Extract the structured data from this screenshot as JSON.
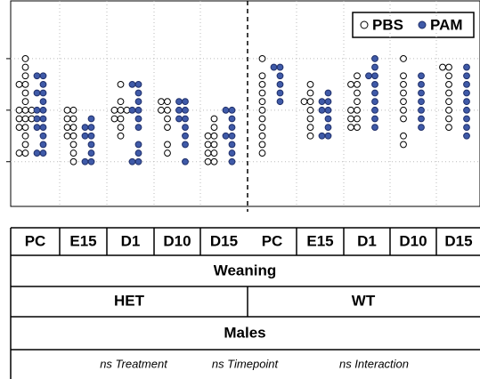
{
  "chart_data": {
    "type": "dot",
    "categories": [
      "PC",
      "E15",
      "D1",
      "D10",
      "D15",
      "PC",
      "E15",
      "D1",
      "D10",
      "D15"
    ],
    "series": [
      {
        "name": "PBS",
        "color": "#ffffff",
        "values": [
          [
            12,
            11,
            10,
            9,
            9,
            8,
            7,
            6,
            6,
            6,
            5,
            5,
            5,
            4,
            4,
            3,
            2,
            1,
            1
          ],
          [
            6,
            6,
            5,
            5,
            4,
            4,
            3,
            3,
            2,
            1,
            0
          ],
          [
            9,
            7,
            6,
            6,
            6,
            5,
            5,
            4,
            3
          ],
          [
            7,
            7,
            6,
            6,
            5,
            4,
            2,
            1
          ],
          [
            5,
            4,
            3,
            3,
            2,
            2,
            1,
            1,
            0,
            0
          ],
          [
            12,
            10,
            9,
            8,
            7,
            6,
            5,
            4,
            3,
            2,
            1
          ],
          [
            9,
            8,
            7,
            7,
            6,
            5,
            4,
            3
          ],
          [
            10,
            9,
            9,
            8,
            7,
            6,
            6,
            5,
            5,
            4,
            4
          ],
          [
            12,
            10,
            9,
            8,
            7,
            6,
            5,
            3,
            2
          ],
          [
            11,
            11,
            10,
            9,
            8,
            7,
            6,
            5,
            4
          ]
        ]
      },
      {
        "name": "PAM",
        "color": "#3f5aa8",
        "values": [
          [
            10,
            10,
            9,
            8,
            8,
            7,
            6,
            6,
            5,
            5,
            4,
            4,
            3,
            2,
            1,
            1
          ],
          [
            5,
            4,
            4,
            3,
            3,
            2,
            1,
            0,
            0
          ],
          [
            9,
            9,
            8,
            7,
            6,
            6,
            5,
            4,
            2,
            1,
            0,
            0
          ],
          [
            7,
            7,
            6,
            6,
            5,
            5,
            4,
            3,
            2,
            0
          ],
          [
            6,
            6,
            5,
            4,
            3,
            3,
            2,
            1,
            0
          ],
          [
            11,
            11,
            10,
            9,
            8,
            7
          ],
          [
            8,
            7,
            7,
            6,
            6,
            5,
            4,
            3,
            3
          ],
          [
            12,
            11,
            10,
            10,
            9,
            8,
            7,
            6,
            5,
            4
          ],
          [
            10,
            9,
            8,
            7,
            6,
            5,
            4
          ],
          [
            11,
            10,
            9,
            8,
            7,
            6,
            5,
            4,
            3
          ]
        ]
      }
    ],
    "ylim": [
      -5,
      18
    ],
    "yticks": [
      0,
      6,
      12
    ],
    "grid": true,
    "legend": "top-right"
  },
  "table": {
    "weaning": "Weaning",
    "groups": [
      "HET",
      "WT"
    ],
    "sex": "Males",
    "stats": [
      "ns Treatment",
      "ns Timepoint",
      "ns Interaction"
    ]
  }
}
